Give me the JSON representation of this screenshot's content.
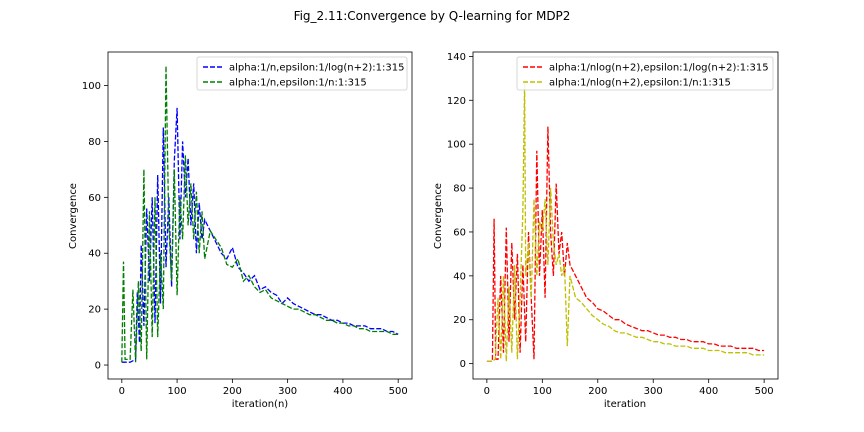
{
  "figure_title": "Fig_2.11:Convergence by Q-learning for MDP2",
  "chart_data": [
    {
      "type": "line",
      "xlabel": "iteration(n)",
      "ylabel": "Convergence",
      "xlim": [
        -25,
        525
      ],
      "ylim": [
        -5,
        112
      ],
      "xticks": [
        0,
        100,
        200,
        300,
        400,
        500
      ],
      "yticks": [
        0,
        20,
        40,
        60,
        80,
        100
      ],
      "legend_position": "top-right",
      "grid": false,
      "series": [
        {
          "name": "alpha:1/n,epsilon:1/log(n+2):1:315",
          "color": "#0000ff",
          "style": "dashed",
          "x": [
            0,
            15,
            25,
            28,
            32,
            35,
            40,
            45,
            50,
            55,
            60,
            65,
            70,
            75,
            80,
            85,
            90,
            95,
            100,
            105,
            110,
            115,
            120,
            125,
            130,
            135,
            140,
            145,
            150,
            160,
            170,
            180,
            190,
            200,
            210,
            220,
            230,
            240,
            250,
            260,
            270,
            280,
            290,
            300,
            310,
            320,
            330,
            340,
            350,
            360,
            370,
            380,
            390,
            400,
            410,
            420,
            430,
            440,
            450,
            460,
            470,
            480,
            490,
            500
          ],
          "y": [
            1,
            1,
            2,
            26,
            8,
            43,
            14,
            56,
            30,
            60,
            15,
            68,
            22,
            85,
            35,
            60,
            28,
            73,
            92,
            45,
            80,
            60,
            74,
            50,
            65,
            40,
            58,
            45,
            52,
            48,
            44,
            40,
            38,
            42,
            35,
            33,
            30,
            32,
            27,
            28,
            26,
            25,
            22,
            24,
            22,
            21,
            20,
            19,
            18,
            18,
            17,
            16,
            16,
            15,
            15,
            14,
            14,
            14,
            13,
            13,
            13,
            12,
            12,
            11
          ]
        },
        {
          "name": "alpha:1/n,epsilon:1/n:1:315",
          "color": "#008000",
          "style": "dashed",
          "x": [
            0,
            3,
            6,
            10,
            15,
            20,
            25,
            30,
            35,
            40,
            45,
            50,
            55,
            60,
            65,
            70,
            75,
            80,
            85,
            90,
            95,
            100,
            105,
            110,
            115,
            120,
            125,
            130,
            135,
            140,
            145,
            150,
            160,
            170,
            180,
            190,
            200,
            210,
            220,
            230,
            240,
            250,
            260,
            270,
            280,
            290,
            300,
            310,
            320,
            330,
            340,
            350,
            360,
            370,
            380,
            390,
            400,
            410,
            420,
            430,
            440,
            450,
            460,
            470,
            480,
            490,
            500
          ],
          "y": [
            1,
            37,
            2,
            2,
            2,
            27,
            1,
            30,
            5,
            70,
            2,
            55,
            10,
            60,
            10,
            40,
            20,
            107,
            50,
            30,
            70,
            25,
            60,
            45,
            75,
            50,
            65,
            45,
            62,
            40,
            55,
            38,
            48,
            45,
            42,
            36,
            35,
            38,
            30,
            32,
            28,
            26,
            27,
            24,
            23,
            22,
            21,
            20,
            20,
            19,
            18,
            18,
            17,
            16,
            16,
            15,
            15,
            14,
            14,
            13,
            13,
            12,
            12,
            12,
            12,
            11,
            11
          ]
        }
      ]
    },
    {
      "type": "line",
      "xlabel": "iteration",
      "ylabel": "Convergence",
      "xlim": [
        -25,
        525
      ],
      "ylim": [
        -7,
        142
      ],
      "xticks": [
        0,
        100,
        200,
        300,
        400,
        500
      ],
      "yticks": [
        0,
        20,
        40,
        60,
        80,
        100,
        120,
        140
      ],
      "legend_position": "top-right",
      "grid": false,
      "series": [
        {
          "name": "alpha:1/nlog(n+2),epsilon:1/log(n+2):1:315",
          "color": "#ff0000",
          "style": "dashed",
          "x": [
            0,
            10,
            13,
            16,
            20,
            25,
            30,
            35,
            40,
            45,
            50,
            55,
            60,
            65,
            70,
            75,
            80,
            85,
            90,
            95,
            100,
            105,
            110,
            115,
            120,
            125,
            130,
            135,
            140,
            145,
            150,
            160,
            170,
            180,
            190,
            200,
            210,
            220,
            230,
            240,
            250,
            260,
            270,
            280,
            290,
            300,
            310,
            320,
            330,
            340,
            350,
            360,
            370,
            380,
            390,
            400,
            410,
            420,
            430,
            440,
            450,
            460,
            470,
            480,
            490,
            500
          ],
          "y": [
            1,
            1,
            66,
            2,
            2,
            40,
            5,
            62,
            10,
            55,
            20,
            50,
            5,
            45,
            10,
            60,
            30,
            2,
            97,
            40,
            70,
            30,
            108,
            60,
            40,
            82,
            50,
            60,
            40,
            55,
            45,
            40,
            35,
            30,
            28,
            25,
            24,
            22,
            20,
            20,
            18,
            17,
            16,
            15,
            15,
            14,
            13,
            13,
            12,
            12,
            11,
            11,
            10,
            10,
            10,
            9,
            9,
            8,
            8,
            8,
            7,
            7,
            7,
            7,
            6,
            6
          ]
        },
        {
          "name": "alpha:1/nlog(n+2),epsilon:1/n:1:315",
          "color": "#bfbf00",
          "style": "dashed",
          "x": [
            0,
            10,
            15,
            20,
            25,
            30,
            35,
            40,
            45,
            50,
            55,
            60,
            65,
            68,
            70,
            75,
            80,
            85,
            90,
            95,
            100,
            105,
            110,
            115,
            120,
            125,
            130,
            135,
            140,
            145,
            150,
            160,
            170,
            180,
            190,
            200,
            210,
            220,
            230,
            240,
            250,
            260,
            270,
            280,
            290,
            300,
            310,
            320,
            330,
            340,
            350,
            360,
            370,
            380,
            390,
            400,
            410,
            420,
            430,
            440,
            450,
            460,
            470,
            480,
            490,
            500
          ],
          "y": [
            1,
            1,
            2,
            30,
            2,
            40,
            1,
            35,
            5,
            45,
            2,
            30,
            70,
            128,
            40,
            55,
            30,
            75,
            40,
            65,
            60,
            75,
            45,
            80,
            55,
            45,
            50,
            40,
            45,
            8,
            40,
            30,
            28,
            25,
            22,
            20,
            18,
            17,
            15,
            14,
            14,
            13,
            12,
            12,
            11,
            10,
            10,
            9,
            9,
            8,
            8,
            8,
            7,
            7,
            7,
            6,
            6,
            6,
            5,
            5,
            5,
            5,
            5,
            4,
            4,
            4
          ]
        }
      ]
    }
  ]
}
